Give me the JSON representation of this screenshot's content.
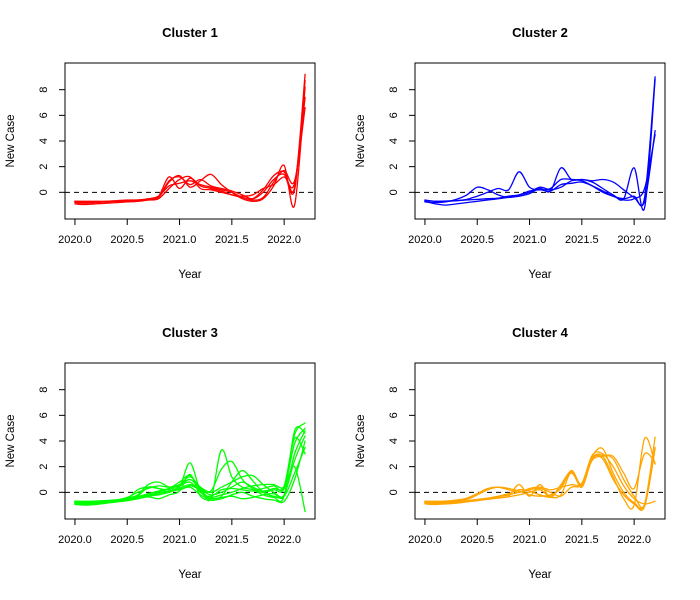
{
  "figure": {
    "background": "#FFFFFF",
    "rows": 2,
    "cols": 2
  },
  "chart_data": [
    {
      "type": "line",
      "title": "Cluster 1",
      "xlabel": "Year",
      "ylabel": "New Case",
      "line_color": "#FF0000",
      "grid": false,
      "legend": "none",
      "zero_line": {
        "y": 0,
        "style": "dashed",
        "color": "#000000"
      },
      "xlim": [
        2019.905,
        2022.295
      ],
      "ylim": [
        -2.08,
        10.08
      ],
      "x_tick_values": [
        2020.0,
        2020.5,
        2021.0,
        2021.5,
        2022.0
      ],
      "x_tick_labels": [
        "2020.0",
        "2020.5",
        "2021.0",
        "2021.5",
        "2022.0"
      ],
      "y_tick_values": [
        0,
        2,
        4,
        6,
        8
      ],
      "y_tick_labels": [
        "0",
        "2",
        "4",
        "6",
        "8"
      ],
      "x": [
        2020.0,
        2020.1,
        2020.2,
        2020.3,
        2020.4,
        2020.5,
        2020.6,
        2020.7,
        2020.8,
        2020.9,
        2021.0,
        2021.1,
        2021.2,
        2021.3,
        2021.4,
        2021.5,
        2021.6,
        2021.7,
        2021.8,
        2021.9,
        2022.0,
        2022.1,
        2022.2
      ],
      "series": [
        {
          "name": "series-1",
          "values": [
            -0.7,
            -0.75,
            -0.75,
            -0.7,
            -0.68,
            -0.65,
            -0.6,
            -0.55,
            -0.3,
            1.2,
            0.3,
            1.1,
            0.5,
            0.3,
            0.1,
            -0.2,
            -0.4,
            -0.5,
            0.2,
            1.3,
            1.6,
            0.4,
            9.2
          ]
        },
        {
          "name": "series-2",
          "values": [
            -0.8,
            -0.85,
            -0.8,
            -0.75,
            -0.7,
            -0.68,
            -0.65,
            -0.6,
            -0.4,
            0.8,
            1.3,
            0.4,
            0.9,
            1.4,
            0.6,
            0.0,
            -0.5,
            -0.7,
            -0.5,
            0.5,
            2.1,
            -1.0,
            8.2
          ]
        },
        {
          "name": "series-3",
          "values": [
            -0.9,
            -0.95,
            -0.9,
            -0.85,
            -0.8,
            -0.75,
            -0.7,
            -0.6,
            -0.5,
            0.3,
            1.0,
            1.2,
            0.3,
            0.2,
            0.0,
            -0.2,
            -0.3,
            -0.2,
            0.3,
            0.6,
            1.2,
            0.7,
            7.4
          ]
        },
        {
          "name": "series-4",
          "values": [
            -0.7,
            -0.7,
            -0.7,
            -0.7,
            -0.65,
            -0.6,
            -0.6,
            -0.5,
            -0.3,
            0.5,
            0.7,
            0.9,
            0.6,
            0.4,
            0.2,
            0.0,
            -0.4,
            -0.6,
            -0.4,
            0.8,
            1.7,
            0.9,
            6.6
          ]
        },
        {
          "name": "series-5",
          "values": [
            -0.75,
            -0.8,
            -0.78,
            -0.72,
            -0.7,
            -0.66,
            -0.62,
            -0.55,
            -0.35,
            0.9,
            1.2,
            0.6,
            1.0,
            0.5,
            0.3,
            0.1,
            -0.2,
            -0.5,
            0.0,
            1.0,
            1.4,
            0.2,
            8.7
          ]
        }
      ]
    },
    {
      "type": "line",
      "title": "Cluster 2",
      "xlabel": "Year",
      "ylabel": "New Case",
      "line_color": "#0000FF",
      "grid": false,
      "legend": "none",
      "zero_line": {
        "y": 0,
        "style": "dashed",
        "color": "#000000"
      },
      "xlim": [
        2019.905,
        2022.295
      ],
      "ylim": [
        -2.08,
        10.08
      ],
      "x_tick_values": [
        2020.0,
        2020.5,
        2021.0,
        2021.5,
        2022.0
      ],
      "x_tick_labels": [
        "2020.0",
        "2020.5",
        "2021.0",
        "2021.5",
        "2022.0"
      ],
      "y_tick_values": [
        0,
        2,
        4,
        6,
        8
      ],
      "y_tick_labels": [
        "0",
        "2",
        "4",
        "6",
        "8"
      ],
      "x": [
        2020.0,
        2020.1,
        2020.2,
        2020.3,
        2020.4,
        2020.5,
        2020.6,
        2020.7,
        2020.8,
        2020.9,
        2021.0,
        2021.1,
        2021.2,
        2021.3,
        2021.4,
        2021.5,
        2021.6,
        2021.7,
        2021.8,
        2021.9,
        2022.0,
        2022.1,
        2022.2
      ],
      "series": [
        {
          "name": "series-1",
          "values": [
            -0.6,
            -0.7,
            -0.7,
            -0.65,
            -0.55,
            -0.3,
            0.0,
            0.3,
            0.2,
            1.6,
            0.4,
            0.2,
            0.3,
            1.0,
            1.0,
            0.9,
            0.5,
            0.0,
            -0.3,
            -0.5,
            -0.3,
            -0.4,
            9.0
          ]
        },
        {
          "name": "series-2",
          "values": [
            -0.7,
            -0.9,
            -1.0,
            -0.9,
            -0.8,
            -0.7,
            -0.6,
            -0.5,
            -0.4,
            -0.3,
            -0.1,
            0.3,
            0.1,
            1.9,
            1.0,
            1.0,
            0.8,
            0.3,
            -0.2,
            -0.5,
            1.9,
            -1.2,
            8.8
          ]
        },
        {
          "name": "series-3",
          "values": [
            -0.75,
            -0.8,
            -0.75,
            -0.55,
            -0.2,
            0.4,
            0.2,
            -0.2,
            -0.4,
            -0.2,
            0.0,
            0.4,
            0.2,
            0.4,
            0.9,
            1.0,
            0.9,
            1.0,
            0.8,
            0.2,
            -0.4,
            -0.7,
            4.8
          ]
        },
        {
          "name": "series-4",
          "values": [
            -0.65,
            -0.7,
            -0.68,
            -0.65,
            -0.6,
            -0.55,
            -0.5,
            -0.45,
            -0.3,
            -0.2,
            0.1,
            0.2,
            0.1,
            0.6,
            0.7,
            0.8,
            0.5,
            0.1,
            -0.3,
            -0.6,
            -0.5,
            0.3,
            4.5
          ]
        }
      ]
    },
    {
      "type": "line",
      "title": "Cluster 3",
      "xlabel": "Year",
      "ylabel": "New Case",
      "line_color": "#00FF00",
      "grid": false,
      "legend": "none",
      "zero_line": {
        "y": 0,
        "style": "dashed",
        "color": "#000000"
      },
      "xlim": [
        2019.905,
        2022.295
      ],
      "ylim": [
        -2.08,
        10.08
      ],
      "x_tick_values": [
        2020.0,
        2020.5,
        2021.0,
        2021.5,
        2022.0
      ],
      "x_tick_labels": [
        "2020.0",
        "2020.5",
        "2021.0",
        "2021.5",
        "2022.0"
      ],
      "y_tick_values": [
        0,
        2,
        4,
        6,
        8
      ],
      "y_tick_labels": [
        "0",
        "2",
        "4",
        "6",
        "8"
      ],
      "x": [
        2020.0,
        2020.1,
        2020.2,
        2020.3,
        2020.4,
        2020.5,
        2020.6,
        2020.7,
        2020.8,
        2020.9,
        2021.0,
        2021.1,
        2021.2,
        2021.3,
        2021.4,
        2021.5,
        2021.6,
        2021.7,
        2021.8,
        2021.9,
        2022.0,
        2022.1,
        2022.2
      ],
      "series": [
        {
          "name": "series-1",
          "values": [
            -0.7,
            -0.72,
            -0.7,
            -0.65,
            -0.6,
            -0.5,
            0.2,
            0.4,
            0.3,
            0.2,
            0.4,
            2.3,
            0.1,
            -0.3,
            0.2,
            0.3,
            0.2,
            0.1,
            0.3,
            0.5,
            0.4,
            4.5,
            5.4
          ]
        },
        {
          "name": "series-2",
          "values": [
            -0.8,
            -0.85,
            -0.8,
            -0.75,
            -0.7,
            -0.6,
            -0.4,
            -0.2,
            0.0,
            0.3,
            0.8,
            1.3,
            0.2,
            -0.5,
            3.3,
            1.2,
            0.4,
            0.2,
            -0.2,
            -0.4,
            -0.3,
            4.8,
            4.6
          ]
        },
        {
          "name": "series-3",
          "values": [
            -0.75,
            -0.8,
            -0.78,
            -0.7,
            -0.65,
            -0.55,
            -0.3,
            0.4,
            0.3,
            0.0,
            0.5,
            1.0,
            0.3,
            0.1,
            1.8,
            2.4,
            1.0,
            0.3,
            0.0,
            0.2,
            0.3,
            3.8,
            5.0
          ]
        },
        {
          "name": "series-4",
          "values": [
            -0.9,
            -0.95,
            -0.9,
            -0.8,
            -0.7,
            -0.6,
            -0.5,
            -0.3,
            -0.2,
            0.0,
            0.3,
            0.6,
            0.2,
            -0.6,
            -0.3,
            0.8,
            1.7,
            0.9,
            0.0,
            -0.3,
            -0.2,
            2.5,
            4.4
          ]
        },
        {
          "name": "series-5",
          "values": [
            -0.7,
            -0.75,
            -0.72,
            -0.68,
            -0.6,
            -0.4,
            0.0,
            0.3,
            0.5,
            0.4,
            0.6,
            1.2,
            0.4,
            0.0,
            0.4,
            0.8,
            1.2,
            1.3,
            0.6,
            0.0,
            -0.3,
            1.5,
            3.5
          ]
        },
        {
          "name": "series-6",
          "values": [
            -0.8,
            -0.82,
            -0.8,
            -0.75,
            -0.68,
            -0.55,
            -0.35,
            -0.1,
            0.1,
            0.3,
            0.5,
            0.8,
            0.0,
            -0.4,
            -0.2,
            0.0,
            0.3,
            0.5,
            0.6,
            0.6,
            0.4,
            2.0,
            -1.5
          ]
        },
        {
          "name": "series-7",
          "values": [
            -0.85,
            -0.9,
            -0.85,
            -0.8,
            -0.72,
            -0.6,
            -0.45,
            -0.25,
            -0.1,
            0.1,
            0.2,
            0.4,
            -0.2,
            -0.5,
            -0.4,
            -0.3,
            -0.5,
            -0.4,
            -0.2,
            -0.1,
            -0.3,
            3.0,
            4.8
          ]
        },
        {
          "name": "series-8",
          "values": [
            -0.7,
            -0.7,
            -0.68,
            -0.64,
            -0.58,
            -0.45,
            -0.2,
            0.6,
            0.8,
            0.4,
            0.2,
            0.5,
            0.2,
            -0.2,
            0.0,
            0.4,
            0.8,
            0.4,
            0.1,
            0.3,
            0.5,
            4.2,
            3.0
          ]
        },
        {
          "name": "series-9",
          "values": [
            -0.95,
            -1.0,
            -0.95,
            -0.85,
            -0.75,
            -0.65,
            -0.5,
            -0.35,
            -0.5,
            -0.2,
            0.1,
            1.4,
            -0.3,
            -0.6,
            -0.5,
            -0.2,
            0.0,
            -0.3,
            -0.5,
            -0.6,
            -0.7,
            1.0,
            4.0
          ]
        }
      ]
    },
    {
      "type": "line",
      "title": "Cluster 4",
      "xlabel": "Year",
      "ylabel": "New Case",
      "line_color": "#FFA500",
      "grid": false,
      "legend": "none",
      "zero_line": {
        "y": 0,
        "style": "dashed",
        "color": "#000000"
      },
      "xlim": [
        2019.905,
        2022.295
      ],
      "ylim": [
        -2.08,
        10.08
      ],
      "x_tick_values": [
        2020.0,
        2020.5,
        2021.0,
        2021.5,
        2022.0
      ],
      "x_tick_labels": [
        "2020.0",
        "2020.5",
        "2021.0",
        "2021.5",
        "2022.0"
      ],
      "y_tick_values": [
        0,
        2,
        4,
        6,
        8
      ],
      "y_tick_labels": [
        "0",
        "2",
        "4",
        "6",
        "8"
      ],
      "x": [
        2020.0,
        2020.1,
        2020.2,
        2020.3,
        2020.4,
        2020.5,
        2020.6,
        2020.7,
        2020.8,
        2020.9,
        2021.0,
        2021.1,
        2021.2,
        2021.3,
        2021.4,
        2021.5,
        2021.6,
        2021.7,
        2021.8,
        2021.9,
        2022.0,
        2022.1,
        2022.2
      ],
      "series": [
        {
          "name": "series-1",
          "values": [
            -0.7,
            -0.72,
            -0.7,
            -0.65,
            -0.55,
            -0.2,
            0.2,
            0.4,
            0.3,
            0.1,
            -0.2,
            -0.3,
            -0.2,
            0.3,
            1.7,
            0.6,
            2.8,
            3.4,
            1.5,
            0.0,
            -0.8,
            -0.9,
            4.3
          ]
        },
        {
          "name": "series-2",
          "values": [
            -0.8,
            -0.85,
            -0.8,
            -0.75,
            -0.7,
            -0.6,
            -0.5,
            -0.4,
            -0.3,
            0.6,
            -0.3,
            0.6,
            -0.4,
            0.6,
            1.6,
            0.4,
            2.6,
            2.9,
            2.6,
            1.0,
            -0.3,
            -1.0,
            3.4
          ]
        },
        {
          "name": "series-3",
          "values": [
            -0.9,
            -0.95,
            -0.9,
            -0.85,
            -0.75,
            -0.65,
            -0.55,
            -0.45,
            -0.35,
            -0.2,
            0.0,
            0.2,
            -0.3,
            0.5,
            1.5,
            0.6,
            2.7,
            2.8,
            1.2,
            -0.5,
            -1.0,
            4.2,
            2.2
          ]
        },
        {
          "name": "series-4",
          "values": [
            -0.7,
            -0.7,
            -0.68,
            -0.6,
            -0.45,
            -0.1,
            0.3,
            0.4,
            0.2,
            0.0,
            0.3,
            0.4,
            0.2,
            0.4,
            0.6,
            0.7,
            2.9,
            3.0,
            2.0,
            0.5,
            -0.5,
            -0.9,
            -0.7
          ]
        },
        {
          "name": "series-5",
          "values": [
            -0.75,
            -0.78,
            -0.75,
            -0.7,
            -0.65,
            -0.55,
            -0.45,
            -0.3,
            -0.1,
            0.2,
            0.1,
            -0.2,
            -0.4,
            -0.2,
            1.6,
            0.5,
            2.7,
            2.6,
            1.0,
            -0.2,
            -0.9,
            -1.1,
            3.5
          ]
        },
        {
          "name": "series-6",
          "values": [
            -0.85,
            -0.88,
            -0.85,
            -0.8,
            -0.72,
            -0.62,
            -0.5,
            -0.35,
            -0.2,
            0.0,
            0.2,
            0.3,
            0.0,
            -0.3,
            0.4,
            0.6,
            2.5,
            2.8,
            2.8,
            1.5,
            0.3,
            3.0,
            2.3
          ]
        }
      ]
    }
  ]
}
